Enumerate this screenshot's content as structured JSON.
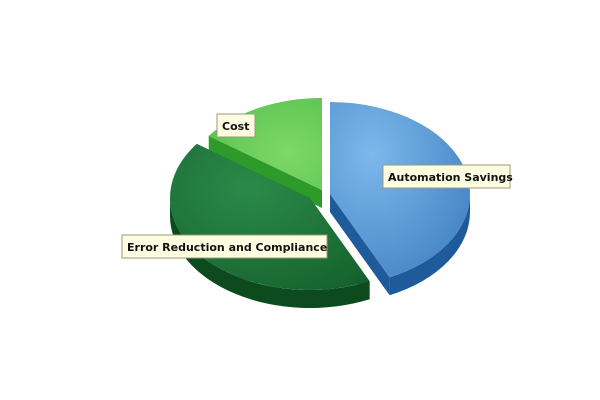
{
  "chart_data": {
    "type": "pie",
    "style": "3d-exploded",
    "series": [
      {
        "label": "Automation Savings",
        "value": 43,
        "color": "#5a9fe0"
      },
      {
        "label": "Error Reduction and Compliance",
        "value": 42,
        "color": "#1e7a3c"
      },
      {
        "label": "Cost",
        "value": 15,
        "color": "#6dd260"
      }
    ],
    "title": "",
    "legend": "none"
  }
}
